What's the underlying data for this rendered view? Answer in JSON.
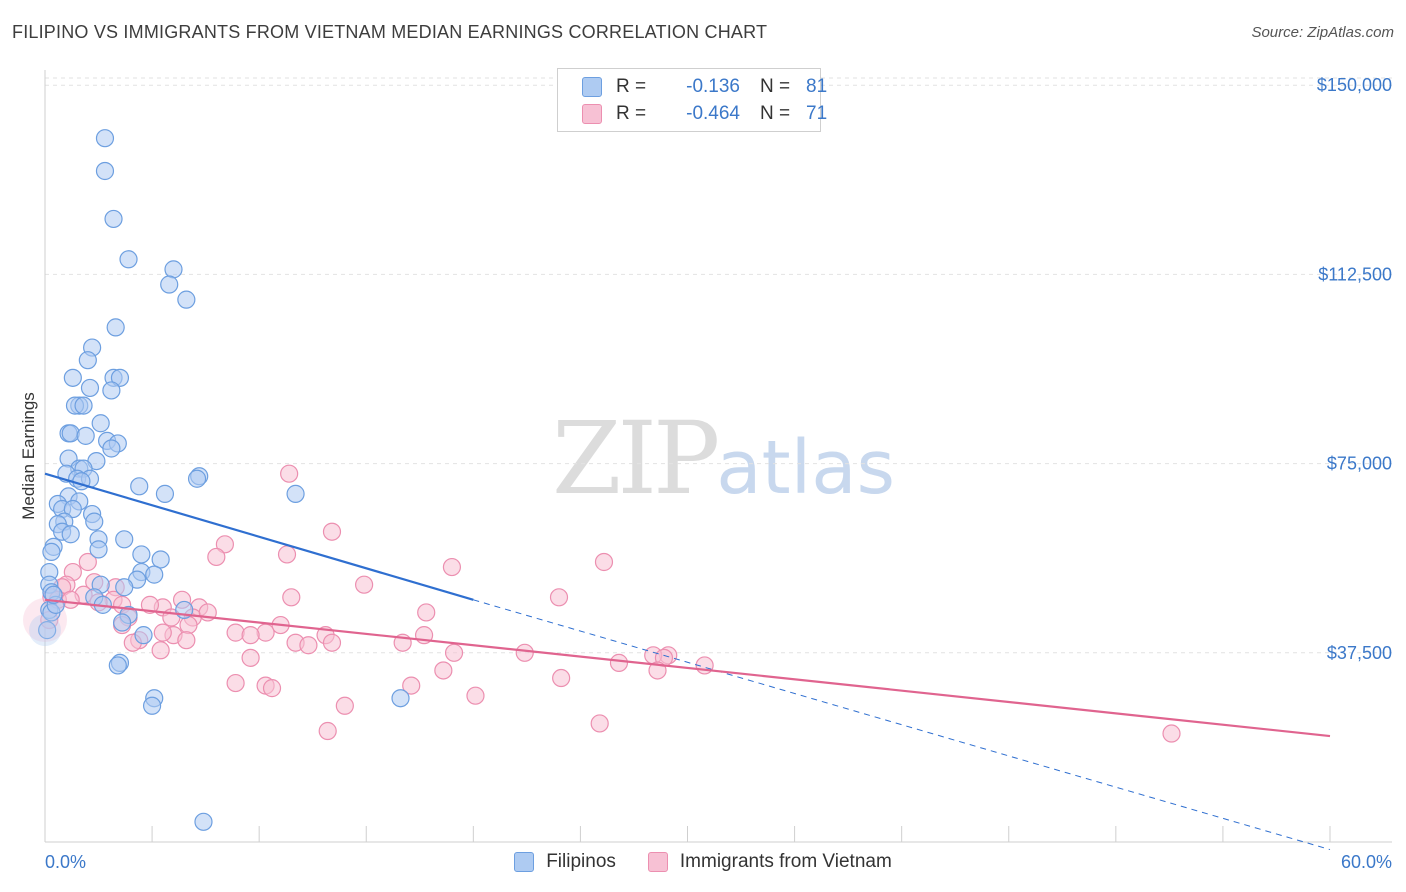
{
  "header": {
    "title": "FILIPINO VS IMMIGRANTS FROM VIETNAM MEDIAN EARNINGS CORRELATION CHART",
    "source": "Source: ZipAtlas.com"
  },
  "watermark": {
    "zip": "ZIP",
    "atlas": "atlas"
  },
  "legend": {
    "series": [
      {
        "r_label": "R =",
        "r_value": "-0.136",
        "n_label": "N =",
        "n_value": "81"
      },
      {
        "r_label": "R =",
        "r_value": "-0.464",
        "n_label": "N =",
        "n_value": "71"
      }
    ]
  },
  "colors": {
    "filipinos_fill": "#aecbf2",
    "filipinos_stroke": "#6d9fe0",
    "filipinos_line": "#2f6fd0",
    "vietnam_fill": "#f7c1d4",
    "vietnam_stroke": "#ec8fb0",
    "vietnam_line": "#e0648f",
    "axis_text": "#3b78c9",
    "grid": "#e2e2e2"
  },
  "chart_data": {
    "type": "scatter",
    "title": "FILIPINO VS IMMIGRANTS FROM VIETNAM MEDIAN EARNINGS CORRELATION CHART",
    "xlabel": "",
    "ylabel": "Median Earnings",
    "xlim": [
      0,
      60
    ],
    "ylim": [
      0,
      155000
    ],
    "x_tick_labels": [
      "0.0%",
      "60.0%"
    ],
    "y_ticks": [
      37500,
      75000,
      112500,
      150000
    ],
    "y_tick_labels": [
      "$37,500",
      "$75,000",
      "$112,500",
      "$150,000"
    ],
    "grid": true,
    "legend_position": "top-center",
    "series": [
      {
        "name": "Filipinos",
        "r": -0.136,
        "n": 81,
        "trend": {
          "x": [
            0,
            20
          ],
          "y": [
            73000,
            48000
          ],
          "dashed_extension_to": [
            60,
            -1500
          ]
        },
        "points": [
          [
            2.8,
            139500
          ],
          [
            2.8,
            133000
          ],
          [
            3.2,
            123500
          ],
          [
            3.9,
            115500
          ],
          [
            6.0,
            113500
          ],
          [
            5.8,
            110500
          ],
          [
            6.6,
            107500
          ],
          [
            3.3,
            102000
          ],
          [
            2.2,
            98000
          ],
          [
            2.0,
            95500
          ],
          [
            1.3,
            92000
          ],
          [
            3.2,
            92000
          ],
          [
            3.5,
            92000
          ],
          [
            2.1,
            90000
          ],
          [
            3.1,
            89500
          ],
          [
            1.6,
            86500
          ],
          [
            1.4,
            86500
          ],
          [
            1.8,
            86500
          ],
          [
            2.6,
            83000
          ],
          [
            1.1,
            81000
          ],
          [
            1.2,
            81000
          ],
          [
            1.9,
            80500
          ],
          [
            2.9,
            79500
          ],
          [
            3.4,
            79000
          ],
          [
            3.1,
            78000
          ],
          [
            1.1,
            76000
          ],
          [
            2.4,
            75500
          ],
          [
            1.6,
            74000
          ],
          [
            1.8,
            74000
          ],
          [
            1.0,
            73000
          ],
          [
            1.5,
            72000
          ],
          [
            2.1,
            72000
          ],
          [
            1.7,
            71500
          ],
          [
            7.2,
            72500
          ],
          [
            7.1,
            72000
          ],
          [
            4.4,
            70500
          ],
          [
            5.6,
            69000
          ],
          [
            11.7,
            69000
          ],
          [
            1.1,
            68500
          ],
          [
            1.6,
            67500
          ],
          [
            0.6,
            67000
          ],
          [
            0.8,
            66000
          ],
          [
            1.3,
            66000
          ],
          [
            2.2,
            65000
          ],
          [
            0.9,
            63500
          ],
          [
            0.6,
            63000
          ],
          [
            2.3,
            63500
          ],
          [
            0.8,
            61500
          ],
          [
            1.2,
            61000
          ],
          [
            3.7,
            60000
          ],
          [
            2.5,
            60000
          ],
          [
            0.4,
            58500
          ],
          [
            2.5,
            58000
          ],
          [
            0.3,
            57500
          ],
          [
            4.5,
            57000
          ],
          [
            5.4,
            56000
          ],
          [
            0.2,
            53500
          ],
          [
            4.5,
            53500
          ],
          [
            5.1,
            53000
          ],
          [
            4.3,
            52000
          ],
          [
            0.2,
            51000
          ],
          [
            2.6,
            51000
          ],
          [
            3.7,
            50500
          ],
          [
            0.3,
            49500
          ],
          [
            2.3,
            48500
          ],
          [
            2.7,
            47000
          ],
          [
            0.2,
            46000
          ],
          [
            3.9,
            45000
          ],
          [
            6.5,
            46000
          ],
          [
            3.6,
            43500
          ],
          [
            0.1,
            42000
          ],
          [
            4.6,
            41000
          ],
          [
            3.5,
            35500
          ],
          [
            3.4,
            35000
          ],
          [
            5.1,
            28500
          ],
          [
            5.0,
            27000
          ],
          [
            16.6,
            28500
          ],
          [
            7.4,
            4000
          ],
          [
            0.3,
            45500
          ],
          [
            0.5,
            47000
          ],
          [
            0.4,
            49000
          ]
        ]
      },
      {
        "name": "Immigrants from Vietnam",
        "r": -0.464,
        "n": 71,
        "trend": {
          "x": [
            0,
            60
          ],
          "y": [
            48000,
            21000
          ]
        },
        "points": [
          [
            11.4,
            73000
          ],
          [
            13.4,
            61500
          ],
          [
            8.4,
            59000
          ],
          [
            11.3,
            57000
          ],
          [
            8.0,
            56500
          ],
          [
            26.1,
            55500
          ],
          [
            19.0,
            54500
          ],
          [
            2.0,
            55500
          ],
          [
            1.3,
            53500
          ],
          [
            14.9,
            51000
          ],
          [
            1.0,
            51000
          ],
          [
            2.3,
            51500
          ],
          [
            0.8,
            50500
          ],
          [
            3.3,
            50500
          ],
          [
            11.5,
            48500
          ],
          [
            24.0,
            48500
          ],
          [
            6.4,
            48000
          ],
          [
            0.3,
            48500
          ],
          [
            0.6,
            48000
          ],
          [
            1.8,
            49000
          ],
          [
            1.2,
            48000
          ],
          [
            3.2,
            48000
          ],
          [
            2.5,
            47500
          ],
          [
            3.6,
            47000
          ],
          [
            5.5,
            46500
          ],
          [
            7.2,
            46500
          ],
          [
            4.9,
            47000
          ],
          [
            3.9,
            44500
          ],
          [
            6.9,
            44500
          ],
          [
            7.6,
            45500
          ],
          [
            5.9,
            44500
          ],
          [
            17.8,
            45500
          ],
          [
            11.0,
            43000
          ],
          [
            6.7,
            43000
          ],
          [
            8.9,
            41500
          ],
          [
            10.3,
            41500
          ],
          [
            6.0,
            41000
          ],
          [
            5.5,
            41500
          ],
          [
            3.6,
            43000
          ],
          [
            17.7,
            41000
          ],
          [
            9.6,
            41000
          ],
          [
            4.4,
            40000
          ],
          [
            6.6,
            40000
          ],
          [
            4.1,
            39500
          ],
          [
            11.7,
            39500
          ],
          [
            13.1,
            41000
          ],
          [
            13.4,
            39500
          ],
          [
            16.7,
            39500
          ],
          [
            12.3,
            39000
          ],
          [
            5.4,
            38000
          ],
          [
            19.1,
            37500
          ],
          [
            22.4,
            37500
          ],
          [
            29.1,
            37000
          ],
          [
            28.4,
            37000
          ],
          [
            28.9,
            36500
          ],
          [
            26.8,
            35500
          ],
          [
            30.8,
            35000
          ],
          [
            9.6,
            36500
          ],
          [
            18.6,
            34000
          ],
          [
            28.6,
            34000
          ],
          [
            24.1,
            32500
          ],
          [
            8.9,
            31500
          ],
          [
            10.3,
            31000
          ],
          [
            10.6,
            30500
          ],
          [
            17.1,
            31000
          ],
          [
            20.1,
            29000
          ],
          [
            14.0,
            27000
          ],
          [
            25.9,
            23500
          ],
          [
            13.2,
            22000
          ],
          [
            52.6,
            21500
          ],
          [
            0.2,
            44000
          ]
        ]
      }
    ]
  }
}
